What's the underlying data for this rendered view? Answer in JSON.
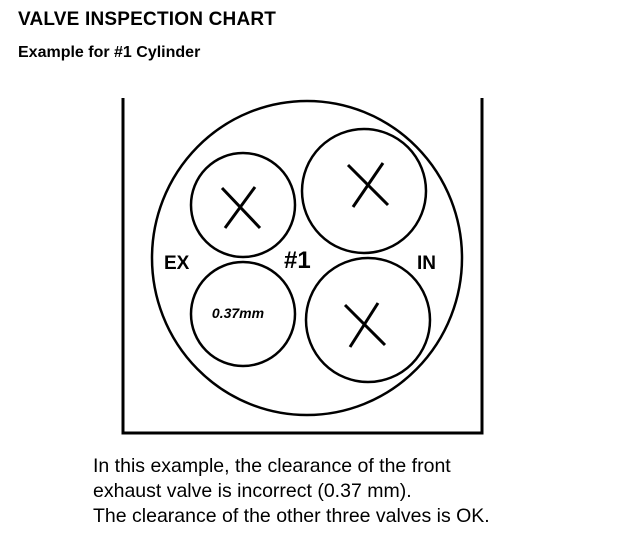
{
  "title": "VALVE INSPECTION CHART",
  "subtitle": "Example for #1 Cylinder",
  "diagram": {
    "cylinder_label": "#1",
    "exhaust_label": "EX",
    "intake_label": "IN",
    "valves": [
      {
        "position": "exhaust-top",
        "mark": "X"
      },
      {
        "position": "exhaust-bottom",
        "mark": "0.37mm"
      },
      {
        "position": "intake-top",
        "mark": "X"
      },
      {
        "position": "intake-bottom",
        "mark": "X"
      }
    ]
  },
  "caption": [
    "In this example, the clearance of the front",
    "exhaust valve is incorrect (0.37 mm).",
    "The clearance of the other three valves is OK."
  ]
}
